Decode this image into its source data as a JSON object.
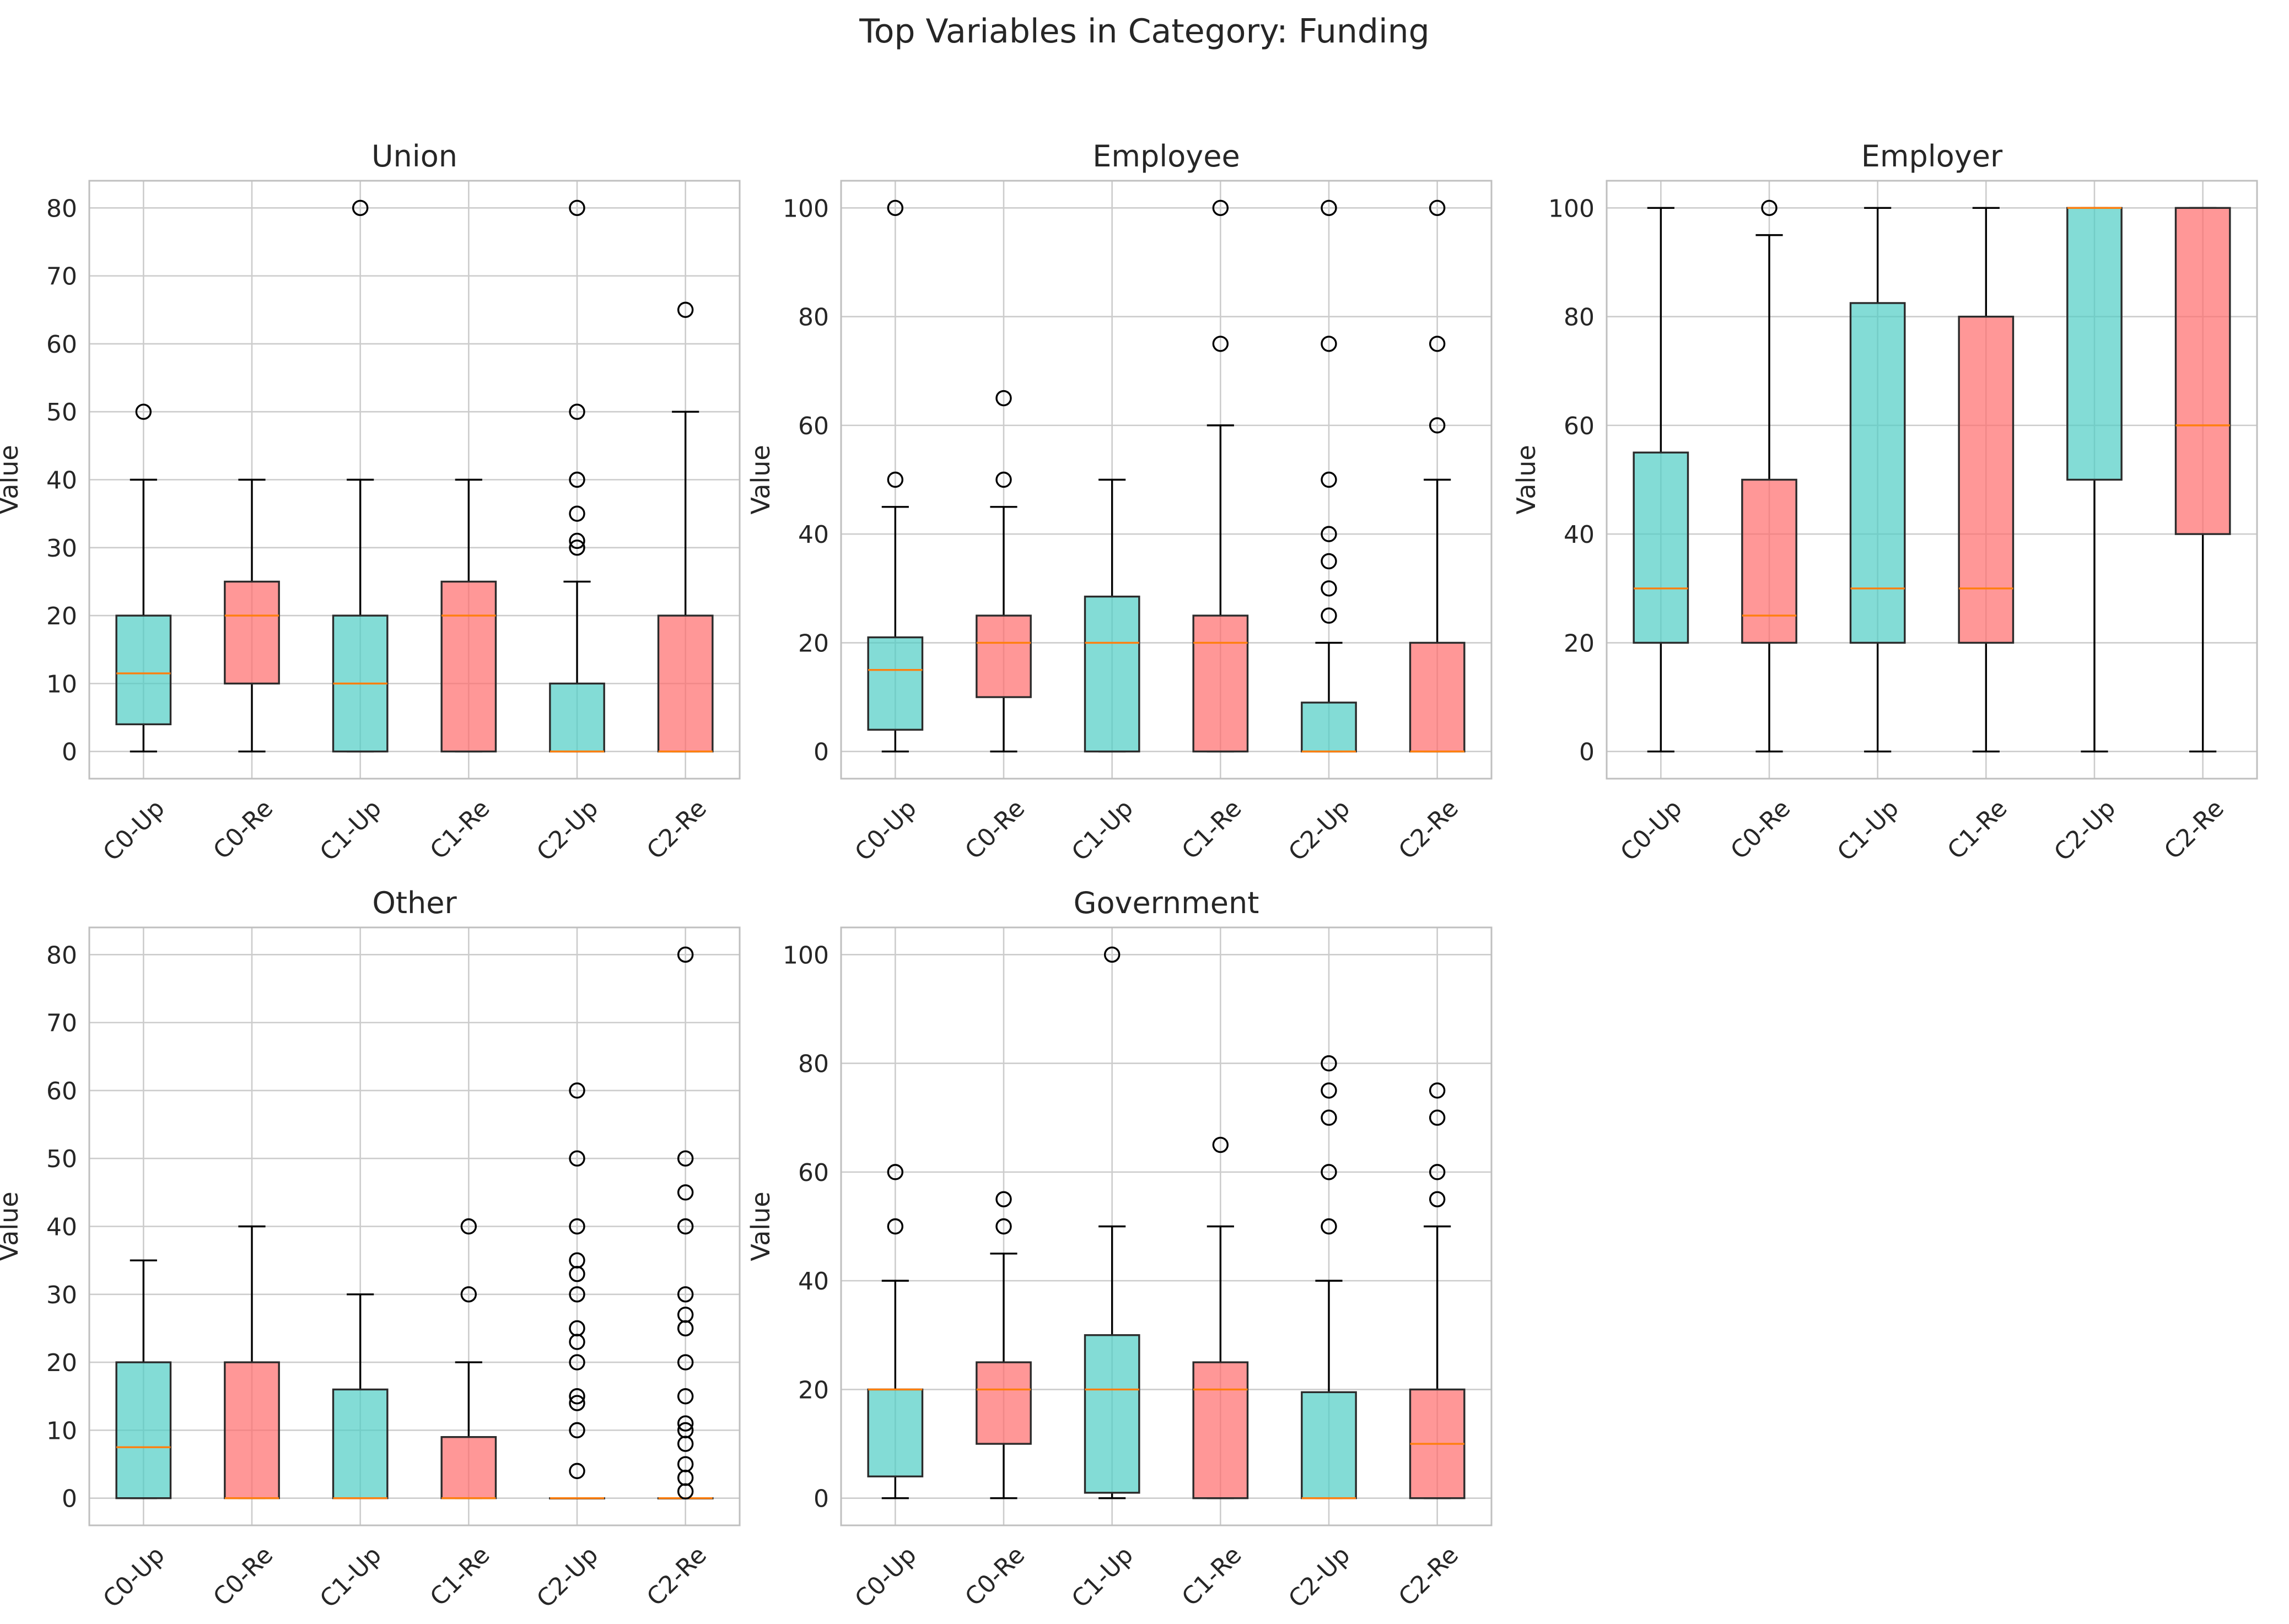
{
  "figure": {
    "title": "Top Variables in Category: Funding"
  },
  "colors": {
    "up": "#4ecdc4",
    "re": "#ff6b6b",
    "median": "#ff7f0e",
    "grid": "#cccccc",
    "axes": "#bfbfbf"
  },
  "chart_data": [
    {
      "type": "box",
      "title": "Union",
      "ylabel": "Value",
      "ylim": [
        -4,
        84
      ],
      "yticks": [
        0,
        10,
        20,
        30,
        40,
        50,
        60,
        70,
        80
      ],
      "grid": true,
      "categories": [
        "C0-Up",
        "C0-Re",
        "C1-Up",
        "C1-Re",
        "C2-Up",
        "C2-Re"
      ],
      "boxes": [
        {
          "group": "up",
          "whisker_low": 0,
          "q1": 4,
          "median": 11.5,
          "q3": 20,
          "whisker_high": 40,
          "outliers": [
            50
          ]
        },
        {
          "group": "re",
          "whisker_low": 0,
          "q1": 10,
          "median": 20,
          "q3": 25,
          "whisker_high": 40,
          "outliers": []
        },
        {
          "group": "up",
          "whisker_low": 0,
          "q1": 0,
          "median": 10,
          "q3": 20,
          "whisker_high": 40,
          "outliers": [
            80
          ]
        },
        {
          "group": "re",
          "whisker_low": 0,
          "q1": 0,
          "median": 20,
          "q3": 25,
          "whisker_high": 40,
          "outliers": []
        },
        {
          "group": "up",
          "whisker_low": 0,
          "q1": 0,
          "median": 0,
          "q3": 10,
          "whisker_high": 25,
          "outliers": [
            30,
            31,
            35,
            40,
            50,
            80
          ]
        },
        {
          "group": "re",
          "whisker_low": 0,
          "q1": 0,
          "median": 0,
          "q3": 20,
          "whisker_high": 50,
          "outliers": [
            65
          ]
        }
      ]
    },
    {
      "type": "box",
      "title": "Employee",
      "ylabel": "Value",
      "ylim": [
        -5,
        105
      ],
      "yticks": [
        0,
        20,
        40,
        60,
        80,
        100
      ],
      "grid": true,
      "categories": [
        "C0-Up",
        "C0-Re",
        "C1-Up",
        "C1-Re",
        "C2-Up",
        "C2-Re"
      ],
      "boxes": [
        {
          "group": "up",
          "whisker_low": 0,
          "q1": 4,
          "median": 15,
          "q3": 21,
          "whisker_high": 45,
          "outliers": [
            50,
            100
          ]
        },
        {
          "group": "re",
          "whisker_low": 0,
          "q1": 10,
          "median": 20,
          "q3": 25,
          "whisker_high": 45,
          "outliers": [
            50,
            65
          ]
        },
        {
          "group": "up",
          "whisker_low": 0,
          "q1": 0,
          "median": 20,
          "q3": 28.5,
          "whisker_high": 50,
          "outliers": []
        },
        {
          "group": "re",
          "whisker_low": 0,
          "q1": 0,
          "median": 20,
          "q3": 25,
          "whisker_high": 60,
          "outliers": [
            75,
            100
          ]
        },
        {
          "group": "up",
          "whisker_low": 0,
          "q1": 0,
          "median": 0,
          "q3": 9,
          "whisker_high": 20,
          "outliers": [
            25,
            30,
            35,
            40,
            50,
            75,
            100
          ]
        },
        {
          "group": "re",
          "whisker_low": 0,
          "q1": 0,
          "median": 0,
          "q3": 20,
          "whisker_high": 50,
          "outliers": [
            60,
            75,
            100
          ]
        }
      ]
    },
    {
      "type": "box",
      "title": "Employer",
      "ylabel": "Value",
      "ylim": [
        -5,
        105
      ],
      "yticks": [
        0,
        20,
        40,
        60,
        80,
        100
      ],
      "grid": true,
      "categories": [
        "C0-Up",
        "C0-Re",
        "C1-Up",
        "C1-Re",
        "C2-Up",
        "C2-Re"
      ],
      "boxes": [
        {
          "group": "up",
          "whisker_low": 0,
          "q1": 20,
          "median": 30,
          "q3": 55,
          "whisker_high": 100,
          "outliers": []
        },
        {
          "group": "re",
          "whisker_low": 0,
          "q1": 20,
          "median": 25,
          "q3": 50,
          "whisker_high": 95,
          "outliers": [
            100
          ]
        },
        {
          "group": "up",
          "whisker_low": 0,
          "q1": 20,
          "median": 30,
          "q3": 82.5,
          "whisker_high": 100,
          "outliers": []
        },
        {
          "group": "re",
          "whisker_low": 0,
          "q1": 20,
          "median": 30,
          "q3": 80,
          "whisker_high": 100,
          "outliers": []
        },
        {
          "group": "up",
          "whisker_low": 0,
          "q1": 50,
          "median": 100,
          "q3": 100,
          "whisker_high": 100,
          "outliers": []
        },
        {
          "group": "re",
          "whisker_low": 0,
          "q1": 40,
          "median": 60,
          "q3": 100,
          "whisker_high": 100,
          "outliers": []
        }
      ]
    },
    {
      "type": "box",
      "title": "Other",
      "ylabel": "Value",
      "ylim": [
        -4,
        84
      ],
      "yticks": [
        0,
        10,
        20,
        30,
        40,
        50,
        60,
        70,
        80
      ],
      "grid": true,
      "categories": [
        "C0-Up",
        "C0-Re",
        "C1-Up",
        "C1-Re",
        "C2-Up",
        "C2-Re"
      ],
      "boxes": [
        {
          "group": "up",
          "whisker_low": 0,
          "q1": 0,
          "median": 7.5,
          "q3": 20,
          "whisker_high": 35,
          "outliers": []
        },
        {
          "group": "re",
          "whisker_low": 0,
          "q1": 0,
          "median": 0,
          "q3": 20,
          "whisker_high": 40,
          "outliers": []
        },
        {
          "group": "up",
          "whisker_low": 0,
          "q1": 0,
          "median": 0,
          "q3": 16,
          "whisker_high": 30,
          "outliers": []
        },
        {
          "group": "re",
          "whisker_low": 0,
          "q1": 0,
          "median": 0,
          "q3": 9,
          "whisker_high": 20,
          "outliers": [
            30,
            40
          ]
        },
        {
          "group": "up",
          "whisker_low": 0,
          "q1": 0,
          "median": 0,
          "q3": 0,
          "whisker_high": 0,
          "outliers": [
            4,
            10,
            14,
            15,
            20,
            23,
            25,
            30,
            33,
            35,
            40,
            50,
            60
          ]
        },
        {
          "group": "re",
          "whisker_low": 0,
          "q1": 0,
          "median": 0,
          "q3": 0,
          "whisker_high": 0,
          "outliers": [
            1,
            3,
            5,
            8,
            10,
            11,
            15,
            20,
            25,
            27,
            30,
            40,
            45,
            50,
            80
          ]
        }
      ]
    },
    {
      "type": "box",
      "title": "Government",
      "ylabel": "Value",
      "ylim": [
        -5,
        105
      ],
      "yticks": [
        0,
        20,
        40,
        60,
        80,
        100
      ],
      "grid": true,
      "categories": [
        "C0-Up",
        "C0-Re",
        "C1-Up",
        "C1-Re",
        "C2-Up",
        "C2-Re"
      ],
      "boxes": [
        {
          "group": "up",
          "whisker_low": 0,
          "q1": 4,
          "median": 20,
          "q3": 20,
          "whisker_high": 40,
          "outliers": [
            50,
            60
          ]
        },
        {
          "group": "re",
          "whisker_low": 0,
          "q1": 10,
          "median": 20,
          "q3": 25,
          "whisker_high": 45,
          "outliers": [
            50,
            55
          ]
        },
        {
          "group": "up",
          "whisker_low": 0,
          "q1": 1,
          "median": 20,
          "q3": 30,
          "whisker_high": 50,
          "outliers": [
            100
          ]
        },
        {
          "group": "re",
          "whisker_low": 0,
          "q1": 0,
          "median": 20,
          "q3": 25,
          "whisker_high": 50,
          "outliers": [
            65
          ]
        },
        {
          "group": "up",
          "whisker_low": 0,
          "q1": 0,
          "median": 0,
          "q3": 19.5,
          "whisker_high": 40,
          "outliers": [
            50,
            60,
            70,
            75,
            80
          ]
        },
        {
          "group": "re",
          "whisker_low": 0,
          "q1": 0,
          "median": 10,
          "q3": 20,
          "whisker_high": 50,
          "outliers": [
            55,
            60,
            70,
            75
          ]
        }
      ]
    }
  ]
}
